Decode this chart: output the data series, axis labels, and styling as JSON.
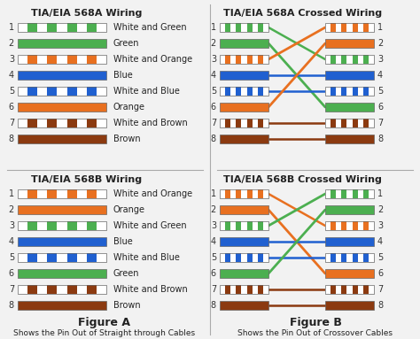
{
  "background_color": "#f2f2f2",
  "title_568A": "TIA/EIA 568A Wiring",
  "title_568B": "TIA/EIA 568B Wiring",
  "title_568A_cross": "TIA/EIA 568A Crossed Wiring",
  "title_568B_cross": "TIA/EIA 568B Crossed Wiring",
  "figure_A": "Figure A",
  "figure_B": "Figure B",
  "caption_A": "Shows the Pin Out of Straight through Cables",
  "caption_B": "Shows the Pin Out of Crossover Cables",
  "colors": {
    "white_green": [
      "#ffffff",
      "#4caf50"
    ],
    "green": [
      "#4caf50"
    ],
    "white_orange": [
      "#ffffff",
      "#e87020"
    ],
    "blue": [
      "#2060d0"
    ],
    "white_blue": [
      "#ffffff",
      "#2060d0"
    ],
    "orange": [
      "#e87020"
    ],
    "white_brown": [
      "#ffffff",
      "#8b3a10"
    ],
    "brown": [
      "#8b3a10"
    ]
  },
  "568A_pins": [
    {
      "label": "White and Green",
      "pattern": "white_green"
    },
    {
      "label": "Green",
      "pattern": "green"
    },
    {
      "label": "White and Orange",
      "pattern": "white_orange"
    },
    {
      "label": "Blue",
      "pattern": "blue"
    },
    {
      "label": "White and Blue",
      "pattern": "white_blue"
    },
    {
      "label": "Orange",
      "pattern": "orange"
    },
    {
      "label": "White and Brown",
      "pattern": "white_brown"
    },
    {
      "label": "Brown",
      "pattern": "brown"
    }
  ],
  "568B_pins": [
    {
      "label": "White and Orange",
      "pattern": "white_orange"
    },
    {
      "label": "Orange",
      "pattern": "orange"
    },
    {
      "label": "White and Green",
      "pattern": "white_green"
    },
    {
      "label": "Blue",
      "pattern": "blue"
    },
    {
      "label": "White and Blue",
      "pattern": "white_blue"
    },
    {
      "label": "Green",
      "pattern": "green"
    },
    {
      "label": "White and Brown",
      "pattern": "white_brown"
    },
    {
      "label": "Brown",
      "pattern": "brown"
    }
  ],
  "568A_cross_left": [
    "white_green",
    "green",
    "white_orange",
    "blue",
    "white_blue",
    "orange",
    "white_brown",
    "brown"
  ],
  "568A_cross_right": [
    "white_orange",
    "orange",
    "white_green",
    "blue",
    "white_blue",
    "green",
    "white_brown",
    "brown"
  ],
  "568A_cross_map": [
    2,
    5,
    0,
    3,
    4,
    1,
    6,
    7
  ],
  "568A_wire_colors": [
    "#4caf50",
    "#4caf50",
    "#e87020",
    "#2060d0",
    "#2060d0",
    "#e87020",
    "#8b3a10",
    "#8b3a10"
  ],
  "568B_cross_left": [
    "white_orange",
    "orange",
    "white_green",
    "blue",
    "white_blue",
    "green",
    "white_brown",
    "brown"
  ],
  "568B_cross_right": [
    "white_green",
    "green",
    "white_orange",
    "blue",
    "white_blue",
    "orange",
    "white_brown",
    "brown"
  ],
  "568B_cross_map": [
    2,
    5,
    0,
    3,
    4,
    1,
    6,
    7
  ],
  "568B_wire_colors": [
    "#e87020",
    "#e87020",
    "#4caf50",
    "#2060d0",
    "#2060d0",
    "#4caf50",
    "#8b3a10",
    "#8b3a10"
  ]
}
